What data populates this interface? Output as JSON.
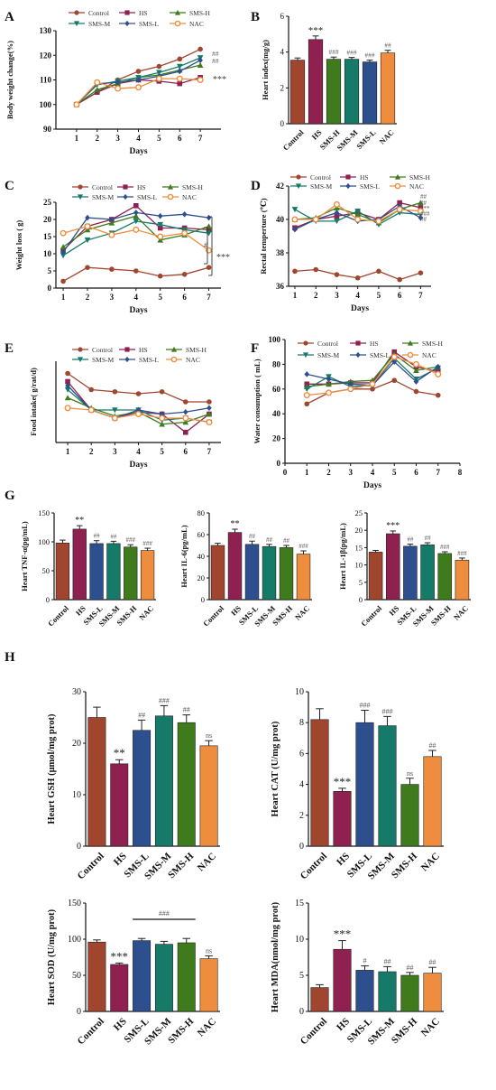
{
  "colors": {
    "Control": "#a0452e",
    "HS": "#8e2150",
    "SMS-H": "#3f7a1c",
    "SMS-M": "#167a68",
    "SMS-L": "#2d4f8e",
    "NAC": "#ee8d3e"
  },
  "panel_labels": [
    "A",
    "B",
    "C",
    "D",
    "E",
    "F",
    "G",
    "H"
  ],
  "chart_data": [
    {
      "id": "A",
      "type": "line",
      "ylabel": "Body weight change(%)",
      "xlabel": "Days",
      "x": [
        1,
        2,
        3,
        4,
        5,
        6,
        7
      ],
      "xticks": [
        1,
        2,
        3,
        4,
        5,
        6,
        7
      ],
      "xlim": [
        0,
        8
      ],
      "ylim": [
        90,
        130
      ],
      "yticks": [
        90,
        100,
        110,
        120,
        130
      ],
      "legend": {
        "layout": [
          [
            "Control",
            "HS",
            "SMS-H"
          ],
          [
            "SMS-M",
            "SMS-L",
            "NAC"
          ]
        ]
      },
      "series": [
        {
          "name": "Control",
          "values": [
            100,
            105,
            110,
            113.5,
            115.5,
            118.5,
            122.5
          ]
        },
        {
          "name": "HS",
          "values": [
            100,
            105,
            108.5,
            110,
            109.5,
            108.5,
            111
          ]
        },
        {
          "name": "SMS-H",
          "values": [
            100,
            106,
            108.5,
            111,
            112,
            114,
            116
          ]
        },
        {
          "name": "SMS-M",
          "values": [
            100,
            108,
            109.5,
            111,
            113,
            115.5,
            119
          ]
        },
        {
          "name": "SMS-L",
          "values": [
            100,
            108.5,
            109,
            110,
            111.5,
            113.5,
            118
          ]
        },
        {
          "name": "NAC",
          "values": [
            100,
            109,
            106.5,
            107,
            110.5,
            110.5,
            110
          ]
        }
      ],
      "annotations": [
        "##",
        "##",
        "***"
      ]
    },
    {
      "id": "B",
      "type": "bar",
      "ylabel": "Heart index(mg/g)",
      "categories": [
        "Control",
        "HS",
        "SMS-H",
        "SMS-M",
        "SMS-L",
        "NAC"
      ],
      "values": [
        3.55,
        4.7,
        3.6,
        3.6,
        3.45,
        3.95
      ],
      "errors": [
        0.12,
        0.2,
        0.12,
        0.1,
        0.1,
        0.15
      ],
      "ylim": [
        0,
        6
      ],
      "yticks": [
        0,
        2,
        4,
        6
      ],
      "annotations": [
        "",
        "***",
        "###",
        "###",
        "###",
        "##"
      ]
    },
    {
      "id": "C",
      "type": "line",
      "ylabel": "Weight loss ( g)",
      "xlabel": "Days",
      "x": [
        1,
        2,
        3,
        4,
        5,
        6,
        7
      ],
      "xticks": [
        1,
        2,
        3,
        4,
        5,
        6,
        7
      ],
      "xlim": [
        0.7,
        7.5
      ],
      "ylim": [
        0,
        25
      ],
      "yticks": [
        0,
        5,
        10,
        15,
        20,
        25
      ],
      "legend": {
        "layout": [
          [
            "Control",
            "HS",
            "SMS-H"
          ],
          [
            "SMS-M",
            "SMS-L",
            "NAC"
          ]
        ]
      },
      "series": [
        {
          "name": "Control",
          "values": [
            2,
            6,
            5.5,
            5,
            3.5,
            4,
            6
          ]
        },
        {
          "name": "HS",
          "values": [
            11,
            18,
            20,
            24,
            17.5,
            17.5,
            17
          ]
        },
        {
          "name": "SMS-H",
          "values": [
            12,
            17,
            19,
            21,
            14,
            15.5,
            18
          ]
        },
        {
          "name": "SMS-M",
          "values": [
            9.5,
            14,
            16,
            19.5,
            18.5,
            17,
            16
          ]
        },
        {
          "name": "SMS-L",
          "values": [
            10.5,
            20.5,
            20,
            22,
            21,
            21.5,
            20.5
          ]
        },
        {
          "name": "NAC",
          "values": [
            16,
            18,
            15.5,
            17,
            15,
            16,
            11
          ]
        }
      ],
      "annotations": [
        "#",
        "***"
      ]
    },
    {
      "id": "D",
      "type": "line",
      "ylabel": "Rectal temperture (℃)",
      "xlabel": "Days",
      "x": [
        1,
        2,
        3,
        4,
        5,
        6,
        7
      ],
      "xticks": [
        1,
        2,
        3,
        4,
        5,
        6,
        7
      ],
      "xlim": [
        0.7,
        7.5
      ],
      "ylim": [
        36,
        42
      ],
      "yticks": [
        36,
        38,
        40,
        42
      ],
      "legend": {
        "layout": [
          [
            "Control",
            "HS",
            "SMS-H"
          ],
          [
            "SMS-M",
            "SMS-L",
            "NAC"
          ]
        ]
      },
      "series": [
        {
          "name": "Control",
          "values": [
            36.9,
            37,
            36.7,
            36.5,
            36.9,
            36.4,
            36.8
          ]
        },
        {
          "name": "HS",
          "values": [
            39.5,
            40,
            40.2,
            40.4,
            40,
            41,
            40.7
          ]
        },
        {
          "name": "SMS-H",
          "values": [
            40,
            40.1,
            40.7,
            40.3,
            39.8,
            40.6,
            41
          ]
        },
        {
          "name": "SMS-M",
          "values": [
            40.6,
            39.9,
            39.9,
            40.5,
            39.7,
            40.4,
            40.3
          ]
        },
        {
          "name": "SMS-L",
          "values": [
            39.4,
            40,
            40.4,
            39.9,
            40,
            40.8,
            40.1
          ]
        },
        {
          "name": "NAC",
          "values": [
            40,
            40,
            40.9,
            40,
            39.9,
            40.6,
            40.5
          ]
        }
      ],
      "annotations": [
        "##",
        "##",
        "***",
        "###",
        "##"
      ]
    },
    {
      "id": "E",
      "type": "line",
      "ylabel": "Food intake( g/rat/d)",
      "xlabel": "Days",
      "x": [
        1,
        2,
        3,
        4,
        5,
        6,
        7
      ],
      "xticks": [
        1,
        2,
        3,
        4,
        5,
        6,
        7
      ],
      "xlim": [
        0.5,
        7.5
      ],
      "ylim": [
        10,
        30
      ],
      "yticks": [],
      "legend": {
        "layout": [
          [
            "Control",
            "HS",
            "SMS-H"
          ],
          [
            "SMS-M",
            "SMS-L",
            "NAC"
          ]
        ]
      },
      "series": [
        {
          "name": "Control",
          "values": [
            27,
            23,
            22.5,
            22,
            22.5,
            20,
            20
          ]
        },
        {
          "name": "HS",
          "values": [
            25,
            18,
            16,
            17.5,
            17,
            12.5,
            17
          ]
        },
        {
          "name": "SMS-H",
          "values": [
            21,
            18.5,
            16.5,
            17.5,
            14.5,
            15,
            17
          ]
        },
        {
          "name": "SMS-M",
          "values": [
            23,
            18,
            18,
            18,
            15.5,
            16,
            15
          ]
        },
        {
          "name": "SMS-L",
          "values": [
            24,
            18,
            16,
            18,
            17,
            17.5,
            18.5
          ]
        },
        {
          "name": "NAC",
          "values": [
            18.5,
            18,
            16,
            17,
            16,
            16,
            15
          ]
        }
      ],
      "annotations": []
    },
    {
      "id": "F",
      "type": "line",
      "ylabel": "Water consumption ( mL)",
      "xlabel": "Days",
      "x": [
        1,
        2,
        3,
        4,
        5,
        6,
        7
      ],
      "xticks": [
        0,
        1,
        2,
        3,
        4,
        5,
        6,
        7,
        8
      ],
      "xlim": [
        0,
        8
      ],
      "ylim": [
        0,
        100
      ],
      "yticks": [
        0,
        20,
        40,
        60,
        80,
        100
      ],
      "legend": {
        "layout": [
          [
            "Control",
            "HS",
            "SMS-H"
          ],
          [
            "SMS-M",
            "SMS-L",
            "NAC"
          ]
        ]
      },
      "series": [
        {
          "name": "Control",
          "values": [
            48,
            57,
            60,
            60,
            67,
            58,
            55
          ]
        },
        {
          "name": "HS",
          "values": [
            64,
            64,
            65,
            65,
            90,
            78,
            74
          ]
        },
        {
          "name": "SMS-H",
          "values": [
            62,
            64,
            66,
            67,
            88,
            75,
            78
          ]
        },
        {
          "name": "SMS-M",
          "values": [
            60,
            70,
            62,
            63,
            85,
            68,
            77
          ]
        },
        {
          "name": "SMS-L",
          "values": [
            72,
            68,
            64,
            63,
            82,
            66,
            78
          ]
        },
        {
          "name": "NAC",
          "values": [
            55,
            57,
            60,
            64,
            86,
            80,
            72
          ]
        }
      ],
      "annotations": []
    },
    {
      "id": "G1",
      "type": "bar",
      "ylabel": "Heart TNF-α(pg/mL)",
      "categories": [
        "Control",
        "HS",
        "SMS-L",
        "SMS-M",
        "SMS-H",
        "NAC"
      ],
      "values": [
        98,
        122,
        97,
        97,
        91,
        85
      ],
      "errors": [
        5,
        6,
        5,
        4,
        4,
        4
      ],
      "ylim": [
        0,
        150
      ],
      "yticks": [
        0,
        50,
        100,
        150
      ],
      "annotations": [
        "",
        "**",
        "##",
        "##",
        "###",
        "###"
      ]
    },
    {
      "id": "G2",
      "type": "bar",
      "ylabel": "Heart IL-6(pg/mL)",
      "categories": [
        "Control",
        "HS",
        "SMS-L",
        "SMS-M",
        "SMS-H",
        "NAC"
      ],
      "values": [
        50,
        62,
        51,
        49,
        48,
        42
      ],
      "errors": [
        2,
        3,
        3,
        2,
        2,
        3
      ],
      "ylim": [
        0,
        80
      ],
      "yticks": [
        0,
        20,
        40,
        60,
        80
      ],
      "annotations": [
        "",
        "**",
        "##",
        "##",
        "##",
        "###"
      ]
    },
    {
      "id": "G3",
      "type": "bar",
      "ylabel": "Heart IL-1β(pg/mL)",
      "categories": [
        "Control",
        "HS",
        "SMS-L",
        "SMS-M",
        "SMS-H",
        "NAC"
      ],
      "values": [
        13.7,
        19,
        15.4,
        15.8,
        13.3,
        11.4
      ],
      "errors": [
        0.5,
        0.8,
        0.6,
        0.6,
        0.5,
        0.6
      ],
      "ylim": [
        0,
        25
      ],
      "yticks": [
        0,
        5,
        10,
        15,
        20,
        25
      ],
      "annotations": [
        "",
        "***",
        "##",
        "##",
        "###",
        "###"
      ]
    },
    {
      "id": "H1",
      "type": "bar",
      "ylabel": "Heart GSH (μmol/mg prot)",
      "categories": [
        "Control",
        "HS",
        "SMS-L",
        "SMS-M",
        "SMS-H",
        "NAC"
      ],
      "values": [
        25,
        16,
        22.5,
        25.3,
        24,
        19.5
      ],
      "errors": [
        2,
        0.8,
        2,
        2,
        1.5,
        1
      ],
      "ylim": [
        0,
        30
      ],
      "yticks": [
        0,
        10,
        20,
        30
      ],
      "annotations": [
        "",
        "**",
        "##",
        "###",
        "##",
        "ns"
      ]
    },
    {
      "id": "H2",
      "type": "bar",
      "ylabel": "Heart CAT (U/mg prot)",
      "categories": [
        "Control",
        "HS",
        "SMS-L",
        "SMS-M",
        "SMS-H",
        "NAC"
      ],
      "values": [
        8.2,
        3.55,
        8,
        7.8,
        4,
        5.8
      ],
      "errors": [
        0.7,
        0.2,
        0.8,
        0.6,
        0.4,
        0.4
      ],
      "ylim": [
        0,
        10
      ],
      "yticks": [
        0,
        2,
        4,
        6,
        8,
        10
      ],
      "annotations": [
        "",
        "***",
        "###",
        "###",
        "ns",
        "##"
      ]
    },
    {
      "id": "H3",
      "type": "bar",
      "ylabel": "Heart SOD (U/mg prot)",
      "categories": [
        "Control",
        "HS",
        "SMS-L",
        "SMS-M",
        "SMS-H",
        "NAC"
      ],
      "values": [
        96,
        65,
        98,
        93,
        95,
        73
      ],
      "errors": [
        3,
        2,
        3,
        4,
        6,
        4
      ],
      "ylim": [
        0,
        150
      ],
      "yticks": [
        0,
        50,
        100,
        150
      ],
      "annotations": [
        "",
        "***",
        "",
        "",
        "",
        "ns"
      ],
      "bracket": "###"
    },
    {
      "id": "H4",
      "type": "bar",
      "ylabel": "Heart MDA(nmol/mg prot)",
      "categories": [
        "Control",
        "HS",
        "SMS-L",
        "SMS-M",
        "SMS-H",
        "NAC"
      ],
      "values": [
        3.3,
        8.6,
        5.7,
        5.5,
        5,
        5.3
      ],
      "errors": [
        0.4,
        1.2,
        0.6,
        0.7,
        0.4,
        0.8
      ],
      "ylim": [
        0,
        15
      ],
      "yticks": [
        0,
        5,
        10,
        15
      ],
      "annotations": [
        "",
        "***",
        "#",
        "##",
        "##",
        "##"
      ]
    }
  ]
}
